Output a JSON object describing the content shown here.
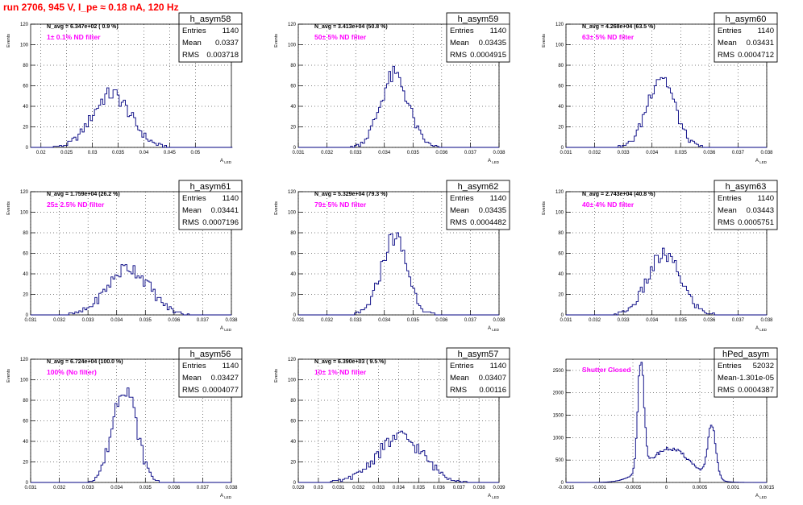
{
  "page_title": "run 2706,   945 V, I_pe ≈ 0.18 nA, 120 Hz",
  "colors": {
    "histogram": "#000080",
    "annotation": "#ff00ff",
    "title": "#ff0000",
    "grid": "#000000"
  },
  "chart_data": [
    {
      "type": "bar",
      "title": "h_asym58",
      "ylabel": "Events",
      "xlabel": "A_LED",
      "navg": "N_avg = 6.347e+02 ( 0.9 %)",
      "filter": "1± 0.1% ND filter",
      "stats": [
        [
          "Entries",
          "1140"
        ],
        [
          "Mean",
          "0.0337"
        ],
        [
          "RMS",
          "0.003718"
        ]
      ],
      "xlim": [
        0.018,
        0.057
      ],
      "ylim": [
        0,
        120
      ],
      "xticks": [
        0.02,
        0.025,
        0.03,
        0.035,
        0.04,
        0.045,
        0.05
      ],
      "xtick_labels": [
        "0.02",
        "0.025",
        "0.03",
        "0.035",
        "0.04",
        "0.045",
        "0.05"
      ],
      "yticks": [
        0,
        20,
        40,
        60,
        80,
        100,
        120
      ],
      "shape": {
        "kind": "gauss",
        "mean": 0.0337,
        "sigma": 0.0037,
        "peak": 52,
        "bw": 0.0004
      }
    },
    {
      "type": "bar",
      "title": "h_asym59",
      "ylabel": "Events",
      "xlabel": "A_LED",
      "navg": "N_avg = 3.413e+04 (50.8 %)",
      "filter": "50± 5% ND filter",
      "stats": [
        [
          "Entries",
          "1140"
        ],
        [
          "Mean",
          "0.03435"
        ],
        [
          "RMS",
          "0.0004915"
        ]
      ],
      "xlim": [
        0.031,
        0.038
      ],
      "ylim": [
        0,
        120
      ],
      "xticks": [
        0.031,
        0.032,
        0.033,
        0.034,
        0.035,
        0.036,
        0.037,
        0.038
      ],
      "xtick_labels": [
        "0.031",
        "0.032",
        "0.033",
        "0.034",
        "0.035",
        "0.036",
        "0.037",
        "0.038"
      ],
      "yticks": [
        0,
        20,
        40,
        60,
        80,
        100,
        120
      ],
      "shape": {
        "kind": "gauss",
        "mean": 0.03435,
        "sigma": 0.00049,
        "peak": 70,
        "bw": 7e-05
      }
    },
    {
      "type": "bar",
      "title": "h_asym60",
      "ylabel": "Events",
      "xlabel": "A_LED",
      "navg": "N_avg = 4.268e+04 (63.5 %)",
      "filter": "63± 5% ND filter",
      "stats": [
        [
          "Entries",
          "1140"
        ],
        [
          "Mean",
          "0.03431"
        ],
        [
          "RMS",
          "0.0004712"
        ]
      ],
      "xlim": [
        0.031,
        0.038
      ],
      "ylim": [
        0,
        120
      ],
      "xticks": [
        0.031,
        0.032,
        0.033,
        0.034,
        0.035,
        0.036,
        0.037,
        0.038
      ],
      "xtick_labels": [
        "0.031",
        "0.032",
        "0.033",
        "0.034",
        "0.035",
        "0.036",
        "0.037",
        "0.038"
      ],
      "yticks": [
        0,
        20,
        40,
        60,
        80,
        100,
        120
      ],
      "shape": {
        "kind": "gauss",
        "mean": 0.03431,
        "sigma": 0.00047,
        "peak": 70,
        "bw": 7e-05
      }
    },
    {
      "type": "bar",
      "title": "h_asym61",
      "ylabel": "Events",
      "xlabel": "A_LED",
      "navg": "N_avg = 1.759e+04 (26.2 %)",
      "filter": "25± 2.5% ND filter",
      "stats": [
        [
          "Entries",
          "1140"
        ],
        [
          "Mean",
          "0.03441"
        ],
        [
          "RMS",
          "0.0007196"
        ]
      ],
      "xlim": [
        0.031,
        0.038
      ],
      "ylim": [
        0,
        120
      ],
      "xticks": [
        0.031,
        0.032,
        0.033,
        0.034,
        0.035,
        0.036,
        0.037,
        0.038
      ],
      "xtick_labels": [
        "0.031",
        "0.032",
        "0.033",
        "0.034",
        "0.035",
        "0.036",
        "0.037",
        "0.038"
      ],
      "yticks": [
        0,
        20,
        40,
        60,
        80,
        100,
        120
      ],
      "shape": {
        "kind": "gauss",
        "mean": 0.03441,
        "sigma": 0.00072,
        "peak": 46,
        "bw": 7e-05
      }
    },
    {
      "type": "bar",
      "title": "h_asym62",
      "ylabel": "Events",
      "xlabel": "A_LED",
      "navg": "N_avg = 5.329e+04 (79.3 %)",
      "filter": "79± 5% ND filter",
      "stats": [
        [
          "Entries",
          "1140"
        ],
        [
          "Mean",
          "0.03435"
        ],
        [
          "RMS",
          "0.0004482"
        ]
      ],
      "xlim": [
        0.031,
        0.038
      ],
      "ylim": [
        0,
        120
      ],
      "xticks": [
        0.031,
        0.032,
        0.033,
        0.034,
        0.035,
        0.036,
        0.037,
        0.038
      ],
      "xtick_labels": [
        "0.031",
        "0.032",
        "0.033",
        "0.034",
        "0.035",
        "0.036",
        "0.037",
        "0.038"
      ],
      "yticks": [
        0,
        20,
        40,
        60,
        80,
        100,
        120
      ],
      "shape": {
        "kind": "gauss",
        "mean": 0.03435,
        "sigma": 0.00045,
        "peak": 76,
        "bw": 7e-05
      }
    },
    {
      "type": "bar",
      "title": "h_asym63",
      "ylabel": "Events",
      "xlabel": "A_LED",
      "navg": "N_avg = 2.743e+04 (40.8 %)",
      "filter": "40± 4% ND filter",
      "stats": [
        [
          "Entries",
          "1140"
        ],
        [
          "Mean",
          "0.03443"
        ],
        [
          "RMS",
          "0.0005751"
        ]
      ],
      "xlim": [
        0.031,
        0.038
      ],
      "ylim": [
        0,
        120
      ],
      "xticks": [
        0.031,
        0.032,
        0.033,
        0.034,
        0.035,
        0.036,
        0.037,
        0.038
      ],
      "xtick_labels": [
        "0.031",
        "0.032",
        "0.033",
        "0.034",
        "0.035",
        "0.036",
        "0.037",
        "0.038"
      ],
      "yticks": [
        0,
        20,
        40,
        60,
        80,
        100,
        120
      ],
      "shape": {
        "kind": "gauss",
        "mean": 0.03443,
        "sigma": 0.00058,
        "peak": 58,
        "bw": 7e-05
      }
    },
    {
      "type": "bar",
      "title": "h_asym56",
      "ylabel": "Events",
      "xlabel": "A_LED",
      "navg": "N_avg = 6.724e+04 (100.0 %)",
      "filter": "100% (No filter)",
      "stats": [
        [
          "Entries",
          "1140"
        ],
        [
          "Mean",
          "0.03427"
        ],
        [
          "RMS",
          "0.0004077"
        ]
      ],
      "xlim": [
        0.031,
        0.038
      ],
      "ylim": [
        0,
        120
      ],
      "xticks": [
        0.031,
        0.032,
        0.033,
        0.034,
        0.035,
        0.036,
        0.037,
        0.038
      ],
      "xtick_labels": [
        "0.031",
        "0.032",
        "0.033",
        "0.034",
        "0.035",
        "0.036",
        "0.037",
        "0.038"
      ],
      "yticks": [
        0,
        20,
        40,
        60,
        80,
        100,
        120
      ],
      "shape": {
        "kind": "gauss",
        "mean": 0.03427,
        "sigma": 0.00041,
        "peak": 95,
        "bw": 7e-05
      }
    },
    {
      "type": "bar",
      "title": "h_asym57",
      "ylabel": "Events",
      "xlabel": "A_LED",
      "navg": "N_avg = 6.390e+03 ( 9.5 %)",
      "filter": "10± 1% ND filter",
      "stats": [
        [
          "Entries",
          "1140"
        ],
        [
          "Mean",
          "0.03407"
        ],
        [
          "RMS",
          "0.00116"
        ]
      ],
      "xlim": [
        0.029,
        0.039
      ],
      "ylim": [
        0,
        120
      ],
      "xticks": [
        0.029,
        0.03,
        0.031,
        0.032,
        0.033,
        0.034,
        0.035,
        0.036,
        0.037,
        0.038,
        0.039
      ],
      "xtick_labels": [
        "0.029",
        "0.03",
        "0.031",
        "0.032",
        "0.033",
        "0.034",
        "0.035",
        "0.036",
        "0.037",
        "0.038",
        "0.039"
      ],
      "yticks": [
        0,
        20,
        40,
        60,
        80,
        100,
        120
      ],
      "shape": {
        "kind": "gauss",
        "mean": 0.03407,
        "sigma": 0.00116,
        "peak": 44,
        "bw": 0.0001
      }
    },
    {
      "type": "bar",
      "title": "hPed_asym",
      "ylabel": "",
      "xlabel": "A_LED",
      "navg": "",
      "filter": "Shutter Closed",
      "stats": [
        [
          "Entries",
          "52032"
        ],
        [
          "Mean",
          "-1.301e-05"
        ],
        [
          "RMS",
          "0.0004387"
        ]
      ],
      "xlim": [
        -0.0015,
        0.0015
      ],
      "ylim": [
        0,
        2750
      ],
      "xticks": [
        -0.0015,
        -0.001,
        -0.0005,
        0,
        0.0005,
        0.001,
        0.0015
      ],
      "xtick_labels": [
        "-0.0015",
        "-0.001",
        "-0.0005",
        "0",
        "0.0005",
        "0.001",
        "0.0015"
      ],
      "yticks": [
        0,
        500,
        1000,
        1500,
        2000,
        2500
      ],
      "shape": {
        "kind": "ped",
        "bw": 2e-05
      }
    }
  ]
}
